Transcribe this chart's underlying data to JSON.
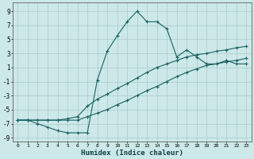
{
  "xlabel": "Humidex (Indice chaleur)",
  "background_color": "#cce8e8",
  "grid_color": "#aacaca",
  "line_color": "#1a6060",
  "xlim": [
    -0.5,
    23.5
  ],
  "ylim": [
    -9.5,
    10.2
  ],
  "xticks": [
    0,
    1,
    2,
    3,
    4,
    5,
    6,
    7,
    8,
    9,
    10,
    11,
    12,
    13,
    14,
    15,
    16,
    17,
    18,
    19,
    20,
    21,
    22,
    23
  ],
  "yticks": [
    -9,
    -7,
    -5,
    -3,
    -1,
    1,
    3,
    5,
    7,
    9
  ],
  "series": [
    {
      "x": [
        0,
        1,
        2,
        3,
        4,
        5,
        6,
        7,
        8,
        9,
        10,
        11,
        12,
        13,
        14,
        15,
        16,
        17,
        18,
        19,
        20,
        21,
        22,
        23
      ],
      "y": [
        -6.5,
        -6.5,
        -7.0,
        -7.5,
        -8.0,
        -8.3,
        -8.3,
        -8.3,
        -0.8,
        3.3,
        5.5,
        7.5,
        9.0,
        7.5,
        7.5,
        6.5,
        2.5,
        3.5,
        2.5,
        1.5,
        1.5,
        2.0,
        1.5,
        1.5
      ]
    },
    {
      "x": [
        0,
        1,
        2,
        3,
        4,
        5,
        6,
        7,
        8,
        9,
        10,
        11,
        12,
        13,
        14,
        15,
        16,
        17,
        18,
        19,
        20,
        21,
        22,
        23
      ],
      "y": [
        -6.5,
        -6.5,
        -6.5,
        -6.5,
        -6.5,
        -6.3,
        -6.0,
        -4.5,
        -3.5,
        -2.8,
        -2.0,
        -1.3,
        -0.5,
        0.3,
        1.0,
        1.5,
        2.0,
        2.5,
        2.8,
        3.0,
        3.3,
        3.5,
        3.8,
        4.0
      ]
    },
    {
      "x": [
        0,
        1,
        2,
        3,
        4,
        5,
        6,
        7,
        8,
        9,
        10,
        11,
        12,
        13,
        14,
        15,
        16,
        17,
        18,
        19,
        20,
        21,
        22,
        23
      ],
      "y": [
        -6.5,
        -6.5,
        -6.5,
        -6.5,
        -6.5,
        -6.5,
        -6.5,
        -6.0,
        -5.5,
        -5.0,
        -4.3,
        -3.7,
        -3.0,
        -2.3,
        -1.7,
        -1.0,
        -0.3,
        0.3,
        0.8,
        1.3,
        1.5,
        1.8,
        2.0,
        2.3
      ]
    }
  ]
}
